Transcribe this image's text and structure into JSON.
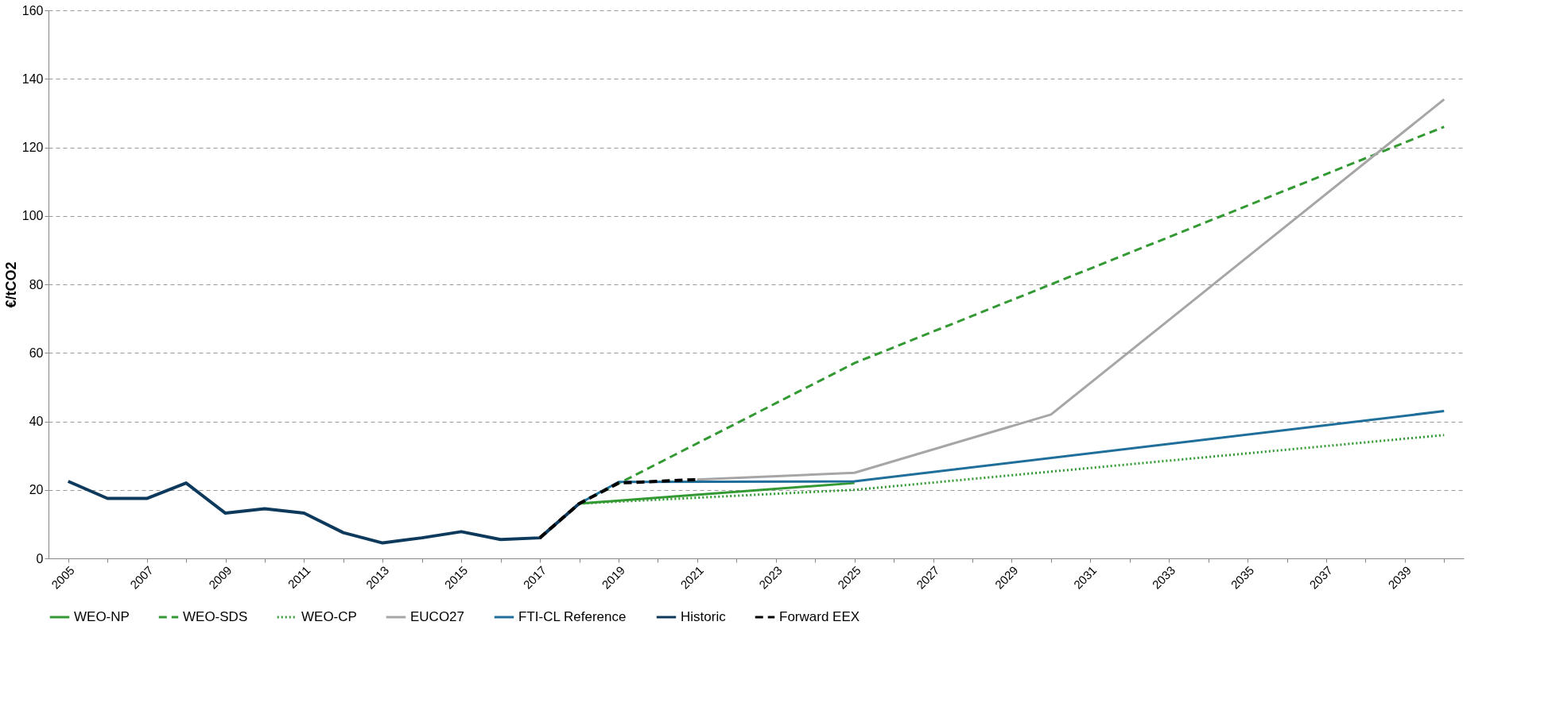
{
  "chart_data": {
    "type": "line",
    "ylabel": "€/tCO2",
    "categories": [
      "2005",
      null,
      "2007",
      null,
      "2009",
      null,
      "2011",
      null,
      "2013",
      null,
      "2015",
      null,
      "2017",
      null,
      "2019",
      null,
      "2021",
      null,
      "2023",
      null,
      "2025",
      null,
      "2027",
      null,
      "2029",
      null,
      "2031",
      null,
      "2033",
      null,
      "2035",
      null,
      "2037",
      null,
      "2039",
      null
    ],
    "series": [
      {
        "name": "WEO-NP",
        "color": "#339933",
        "line_style": "solid",
        "values": [
          null,
          null,
          null,
          null,
          null,
          null,
          null,
          null,
          null,
          null,
          null,
          null,
          null,
          16,
          null,
          null,
          null,
          null,
          null,
          null,
          22,
          null,
          null,
          null,
          null,
          null,
          null,
          null,
          null,
          null,
          null,
          null,
          null,
          null,
          null,
          null
        ]
      },
      {
        "name": "WEO-SDS",
        "color": "#339933",
        "line_style": "dashed",
        "values": [
          null,
          null,
          null,
          null,
          null,
          null,
          null,
          null,
          null,
          null,
          null,
          null,
          null,
          16,
          null,
          null,
          null,
          null,
          null,
          null,
          57,
          null,
          null,
          null,
          null,
          80,
          null,
          null,
          null,
          null,
          null,
          null,
          null,
          null,
          null,
          126
        ]
      },
      {
        "name": "WEO-CP",
        "color": "#339933",
        "line_style": "dotted",
        "values": [
          null,
          null,
          null,
          null,
          null,
          null,
          null,
          null,
          null,
          null,
          null,
          null,
          null,
          16,
          null,
          null,
          null,
          null,
          null,
          null,
          20,
          null,
          null,
          null,
          null,
          null,
          null,
          null,
          null,
          null,
          null,
          null,
          null,
          null,
          null,
          36
        ]
      },
      {
        "name": "EUCO27",
        "color": "#a6a6a6",
        "line_style": "solid",
        "values": [
          null,
          null,
          null,
          null,
          null,
          null,
          null,
          null,
          null,
          null,
          null,
          null,
          null,
          null,
          null,
          null,
          23,
          null,
          null,
          null,
          25,
          null,
          null,
          null,
          null,
          42,
          null,
          null,
          null,
          null,
          null,
          null,
          null,
          null,
          null,
          134
        ]
      },
      {
        "name": "FTI-CL Reference",
        "color": "#1f6f9a",
        "line_style": "solid",
        "values": [
          null,
          null,
          null,
          null,
          null,
          null,
          null,
          null,
          null,
          null,
          null,
          null,
          null,
          16,
          22.3,
          null,
          null,
          null,
          null,
          null,
          22.5,
          null,
          null,
          null,
          null,
          null,
          null,
          null,
          null,
          null,
          null,
          null,
          null,
          null,
          null,
          43
        ]
      },
      {
        "name": "Historic",
        "color": "#0d3a5c",
        "line_style": "solid",
        "values": [
          22.5,
          17.5,
          17.5,
          22,
          13.2,
          14.5,
          13.2,
          7.5,
          4.5,
          6,
          7.8,
          5.5,
          6,
          16,
          null,
          null,
          null,
          null,
          null,
          null,
          null,
          null,
          null,
          null,
          null,
          null,
          null,
          null,
          null,
          null,
          null,
          null,
          null,
          null,
          null,
          null
        ]
      },
      {
        "name": "Forward EEX",
        "color": "#000000",
        "line_style": "dashed",
        "values": [
          null,
          null,
          null,
          null,
          null,
          null,
          null,
          null,
          null,
          null,
          null,
          null,
          6,
          16,
          22,
          22.5,
          23,
          null,
          null,
          null,
          null,
          null,
          null,
          null,
          null,
          null,
          null,
          null,
          null,
          null,
          null,
          null,
          null,
          null,
          null,
          null
        ]
      }
    ],
    "ylim": [
      0,
      160
    ],
    "yticks": [
      0,
      20,
      40,
      60,
      80,
      100,
      120,
      140,
      160
    ],
    "grid": "y",
    "legend": "bottom"
  }
}
